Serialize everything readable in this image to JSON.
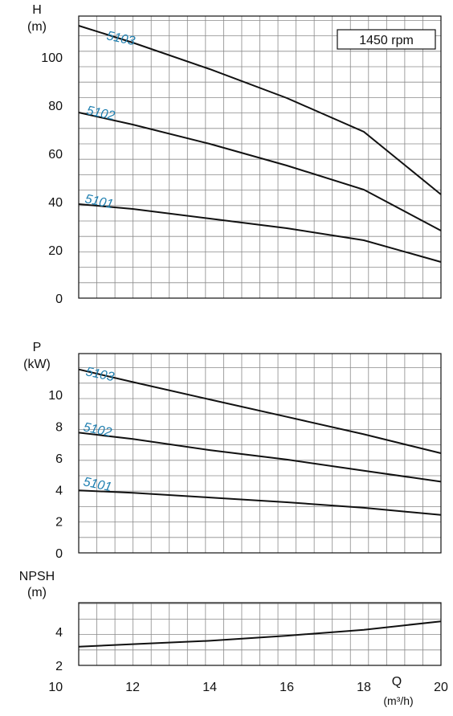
{
  "chart_data": [
    {
      "type": "line",
      "ylabel_line1": "H",
      "ylabel_line2": "(m)",
      "annotation": "1450 rpm",
      "ylim": [
        0,
        117
      ],
      "xlim": [
        10.6,
        20
      ],
      "yticks": [
        0,
        20,
        40,
        60,
        80,
        100
      ],
      "grid": true,
      "series": [
        {
          "name": "5103",
          "x": [
            10.6,
            12,
            14,
            16,
            18,
            20
          ],
          "y": [
            113,
            106,
            95,
            83,
            69,
            43
          ]
        },
        {
          "name": "5102",
          "x": [
            10.6,
            12,
            14,
            16,
            18,
            20
          ],
          "y": [
            77,
            72,
            64,
            55,
            45,
            28
          ]
        },
        {
          "name": "5101",
          "x": [
            10.6,
            12,
            14,
            16,
            18,
            20
          ],
          "y": [
            39,
            37,
            33,
            29,
            24,
            15
          ]
        }
      ]
    },
    {
      "type": "line",
      "ylabel_line1": "P",
      "ylabel_line2": "(kW)",
      "ylim": [
        0,
        12.6
      ],
      "xlim": [
        10.6,
        20
      ],
      "yticks": [
        0,
        2,
        4,
        6,
        8,
        10
      ],
      "grid": true,
      "series": [
        {
          "name": "5103",
          "x": [
            10.6,
            12,
            14,
            16,
            18,
            20
          ],
          "y": [
            11.6,
            10.8,
            9.7,
            8.6,
            7.5,
            6.3
          ]
        },
        {
          "name": "5102",
          "x": [
            10.6,
            12,
            14,
            16,
            18,
            20
          ],
          "y": [
            7.6,
            7.2,
            6.5,
            5.9,
            5.2,
            4.5
          ]
        },
        {
          "name": "5101",
          "x": [
            10.6,
            12,
            14,
            16,
            18,
            20
          ],
          "y": [
            3.95,
            3.8,
            3.5,
            3.2,
            2.85,
            2.4
          ]
        }
      ]
    },
    {
      "type": "line",
      "ylabel_line1": "NPSH",
      "ylabel_line2": "(m)",
      "ylim": [
        2,
        5.7
      ],
      "xlim": [
        10.6,
        20
      ],
      "yticks": [
        2,
        4
      ],
      "xticks": [
        10,
        12,
        14,
        16,
        18,
        20
      ],
      "xlabel_line1": "Q",
      "xlabel_line2": "(m³/h)",
      "grid": true,
      "series": [
        {
          "x": [
            10.6,
            12,
            14,
            16,
            18,
            20
          ],
          "y": [
            3.1,
            3.25,
            3.45,
            3.75,
            4.1,
            4.6
          ]
        }
      ]
    }
  ]
}
